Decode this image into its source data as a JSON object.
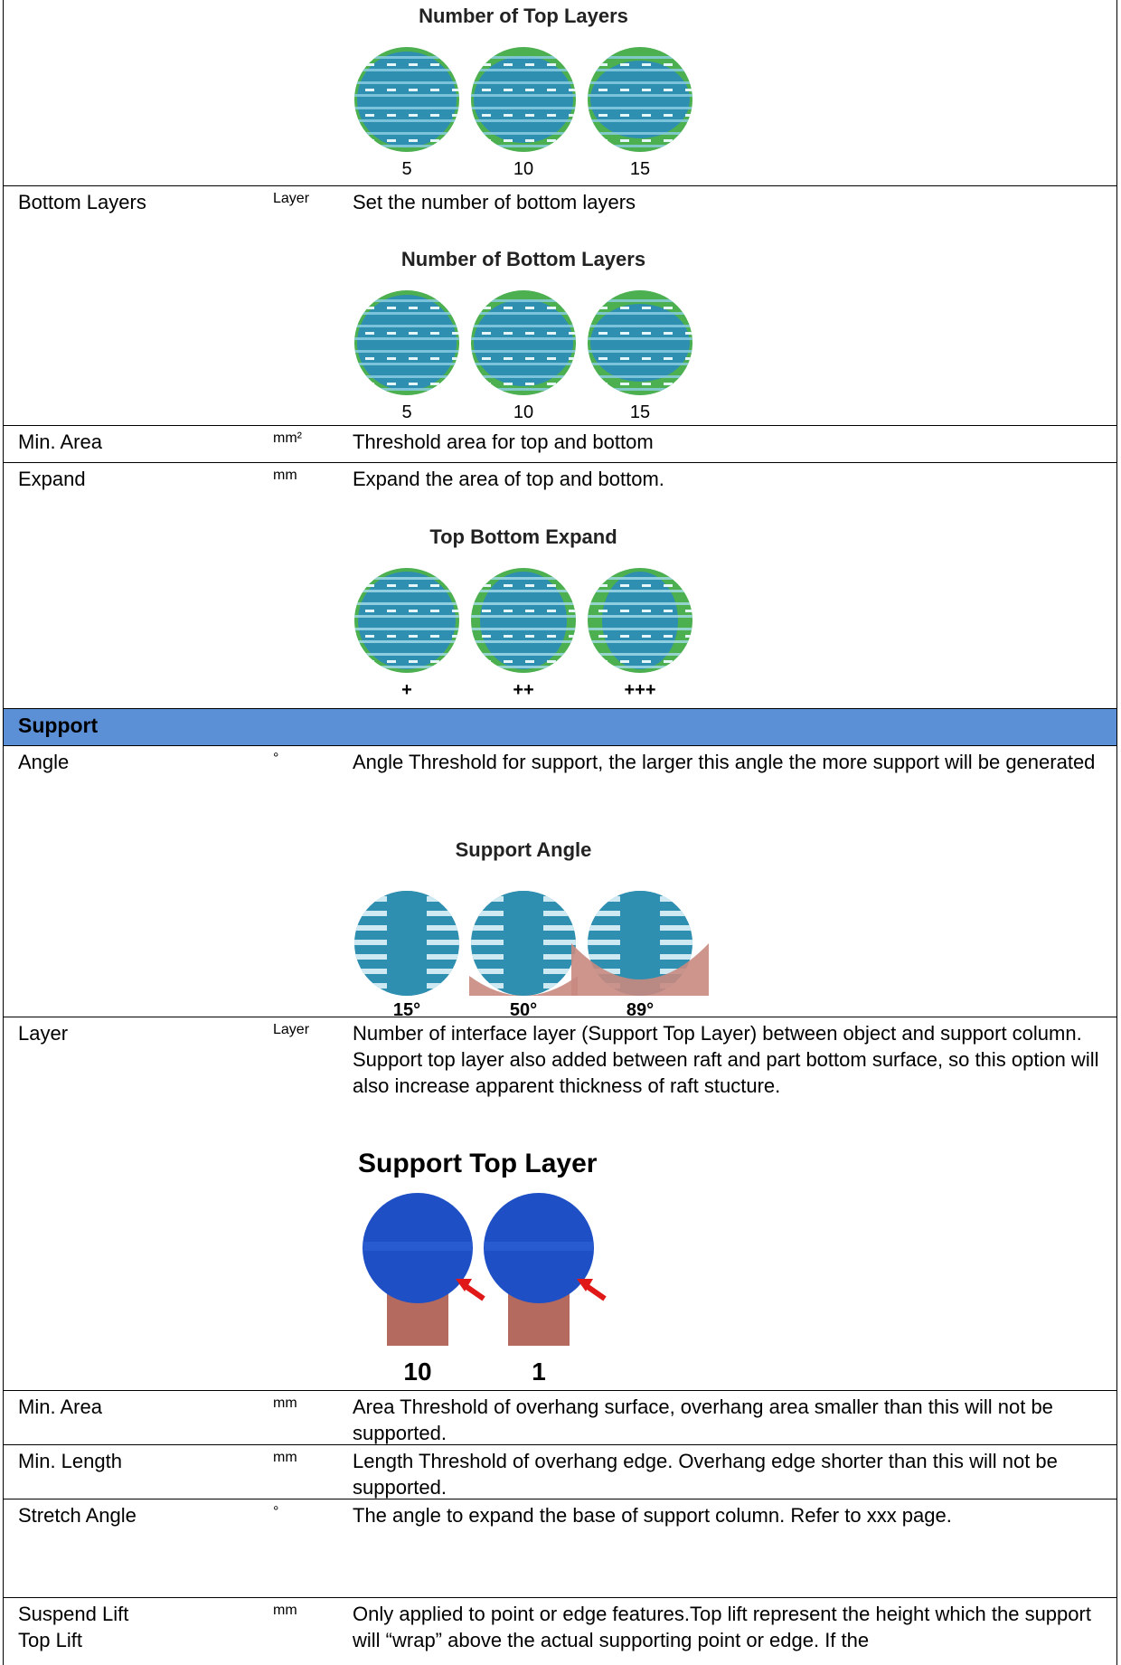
{
  "rows": [
    {
      "figure": {
        "title": "Number of Top Layers",
        "labels": [
          "5",
          "10",
          "15"
        ]
      }
    },
    {
      "label": "Bottom Layers",
      "unit": "Layer",
      "description": "Set the number of bottom layers",
      "figure": {
        "title": "Number of Bottom Layers",
        "labels": [
          "5",
          "10",
          "15"
        ]
      }
    },
    {
      "label": "Min. Area",
      "unit": "mm²",
      "description": "Threshold area for top and bottom"
    },
    {
      "label": "Expand",
      "unit": "mm",
      "description": "Expand the area of top and bottom.",
      "figure": {
        "title": "Top Bottom Expand",
        "labels": [
          "+",
          "++",
          "+++"
        ]
      }
    },
    {
      "section": "Support"
    },
    {
      "label": "Angle",
      "unit": "°",
      "description": "Angle Threshold for support, the larger this angle  the more support will be generated",
      "figure": {
        "title": "Support Angle",
        "labels": [
          "15°",
          "50°",
          "89°"
        ]
      }
    },
    {
      "label": "Layer",
      "unit": "Layer",
      "description": "Number of interface layer (Support Top Layer) between object and support column. Support top layer also added between raft and part bottom surface, so this option will also increase apparent thickness of raft stucture.",
      "figure": {
        "title": "Support Top Layer",
        "labels": [
          "10",
          "1"
        ]
      }
    },
    {
      "label": "Min. Area",
      "unit": "mm",
      "description": "Area Threshold of overhang surface, overhang area smaller than this will not be supported."
    },
    {
      "label": "Min. Length",
      "unit": "mm",
      "description": "Length Threshold of overhang edge. Overhang edge shorter than this will not be supported."
    },
    {
      "label": "Stretch Angle",
      "unit": "°",
      "description": "The angle to expand the base of support column. Refer to xxx page."
    },
    {
      "label": "Suspend Lift\nTop Lift",
      "unit": "mm",
      "description": "Only applied to point or edge features.Top lift represent the height which the support will “wrap” above the actual supporting point or edge. If the"
    }
  ]
}
